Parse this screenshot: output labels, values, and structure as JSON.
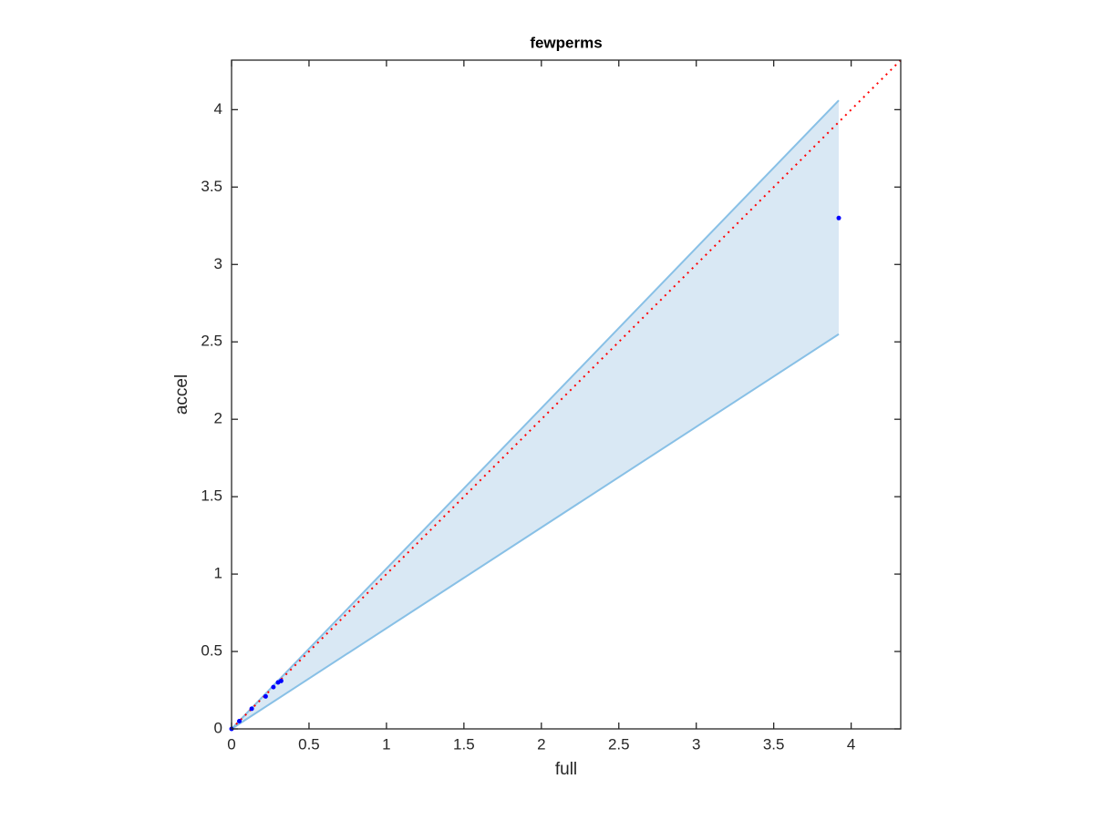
{
  "chart_data": {
    "type": "scatter",
    "title": "fewperms",
    "x_label": "full",
    "y_label": "accel",
    "xlim": [
      0,
      4.32
    ],
    "ylim": [
      0,
      4.32
    ],
    "xticks": [
      0,
      0.5,
      1,
      1.5,
      2,
      2.5,
      3,
      3.5,
      4
    ],
    "yticks": [
      0,
      0.5,
      1,
      1.5,
      2,
      2.5,
      3,
      3.5,
      4
    ],
    "band": {
      "x": [
        0,
        3.92
      ],
      "upper": [
        0,
        4.06
      ],
      "lower": [
        0,
        2.55
      ],
      "color": "#d9e8f4",
      "edge_color": "#88c0e6"
    },
    "reference_line": {
      "x": [
        0,
        4.32
      ],
      "y": [
        0,
        4.32
      ],
      "color": "#ff0000"
    },
    "points": {
      "x": [
        0,
        0.05,
        0.13,
        0.22,
        0.27,
        0.3,
        0.32,
        3.92
      ],
      "y": [
        0,
        0.05,
        0.13,
        0.21,
        0.27,
        0.3,
        0.31,
        3.3
      ],
      "color": "#0000ff"
    }
  }
}
